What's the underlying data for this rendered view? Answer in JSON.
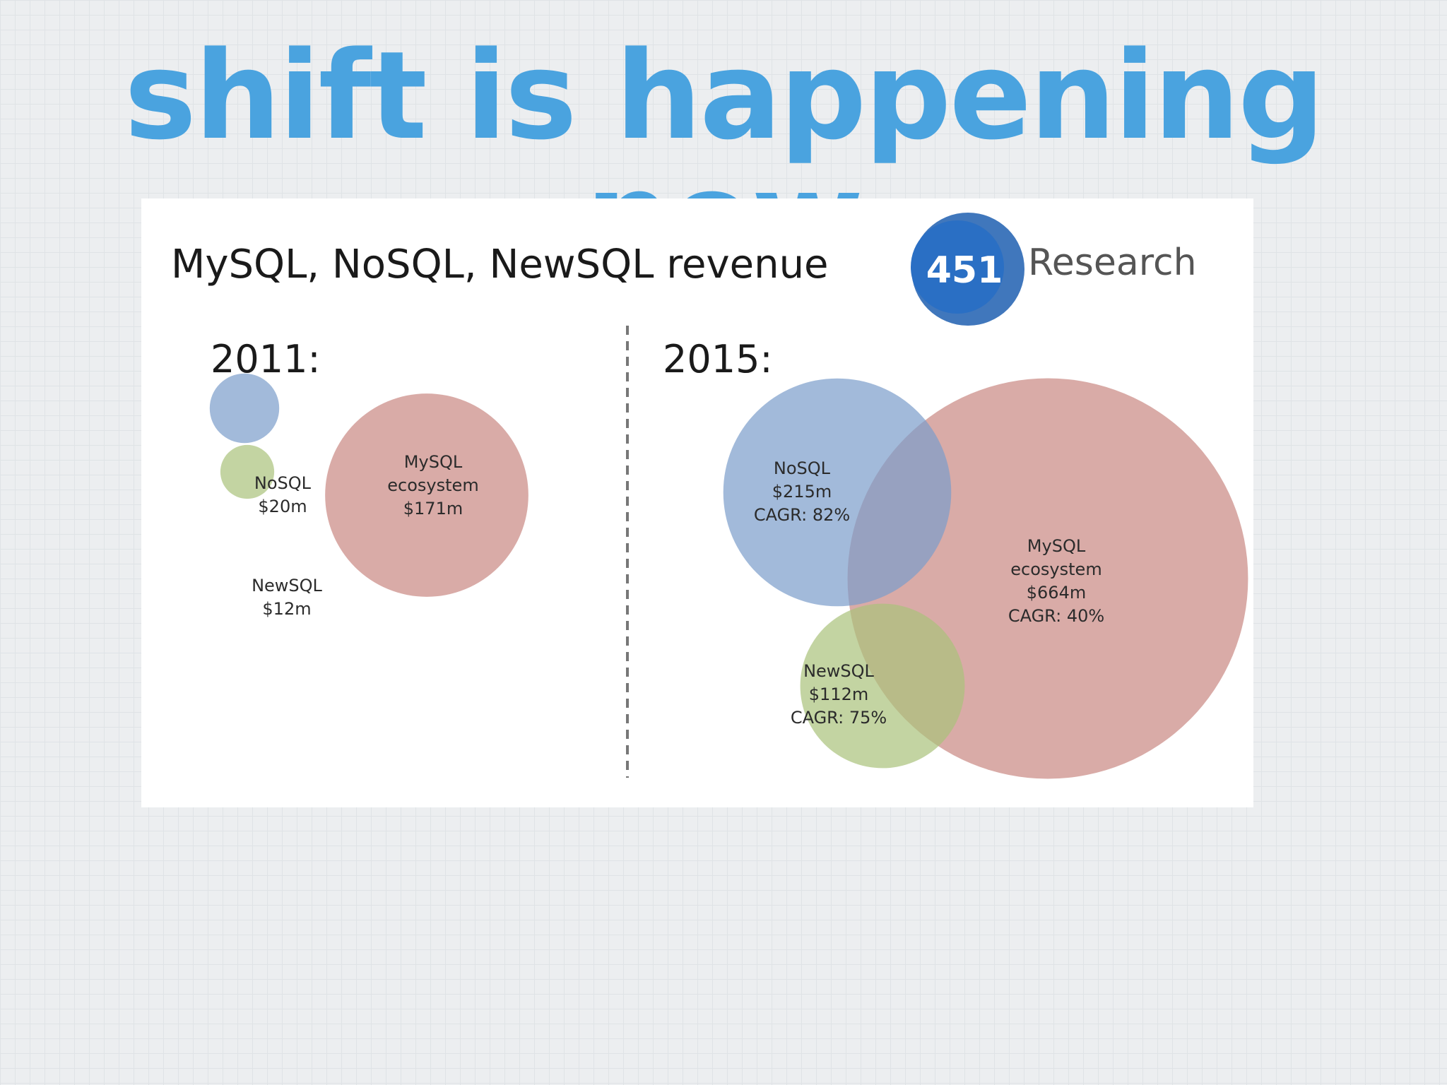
{
  "slide": {
    "title": "shift is happening now"
  },
  "logo": {
    "number": "451",
    "name": "Research"
  },
  "chart_data": [
    {
      "type": "bubble",
      "title": "MySQL, NoSQL, NewSQL revenue",
      "panel_label": "2011:",
      "series": [
        {
          "key": "nosql",
          "name": "NoSQL",
          "value_label": "$20m",
          "value": 20,
          "color": "#7b9ccb"
        },
        {
          "key": "newsql",
          "name": "NewSQL",
          "value_label": "$12m",
          "value": 12,
          "color": "#a9c27a"
        },
        {
          "key": "mysql",
          "name": "MySQL\necosystem",
          "value_label": "$171m",
          "value": 171,
          "color": "#c98782"
        }
      ]
    },
    {
      "type": "bubble",
      "panel_label": "2015:",
      "series": [
        {
          "key": "nosql",
          "name": "NoSQL",
          "value_label": "$215m",
          "cagr": "CAGR: 82%",
          "value": 215,
          "color": "#7b9ccb"
        },
        {
          "key": "newsql",
          "name": "NewSQL",
          "value_label": "$112m",
          "cagr": "CAGR: 75%",
          "value": 112,
          "color": "#a9c27a"
        },
        {
          "key": "mysql",
          "name": "MySQL\necosystem",
          "value_label": "$664m",
          "cagr": "CAGR: 40%",
          "value": 664,
          "color": "#c98782"
        }
      ]
    }
  ]
}
